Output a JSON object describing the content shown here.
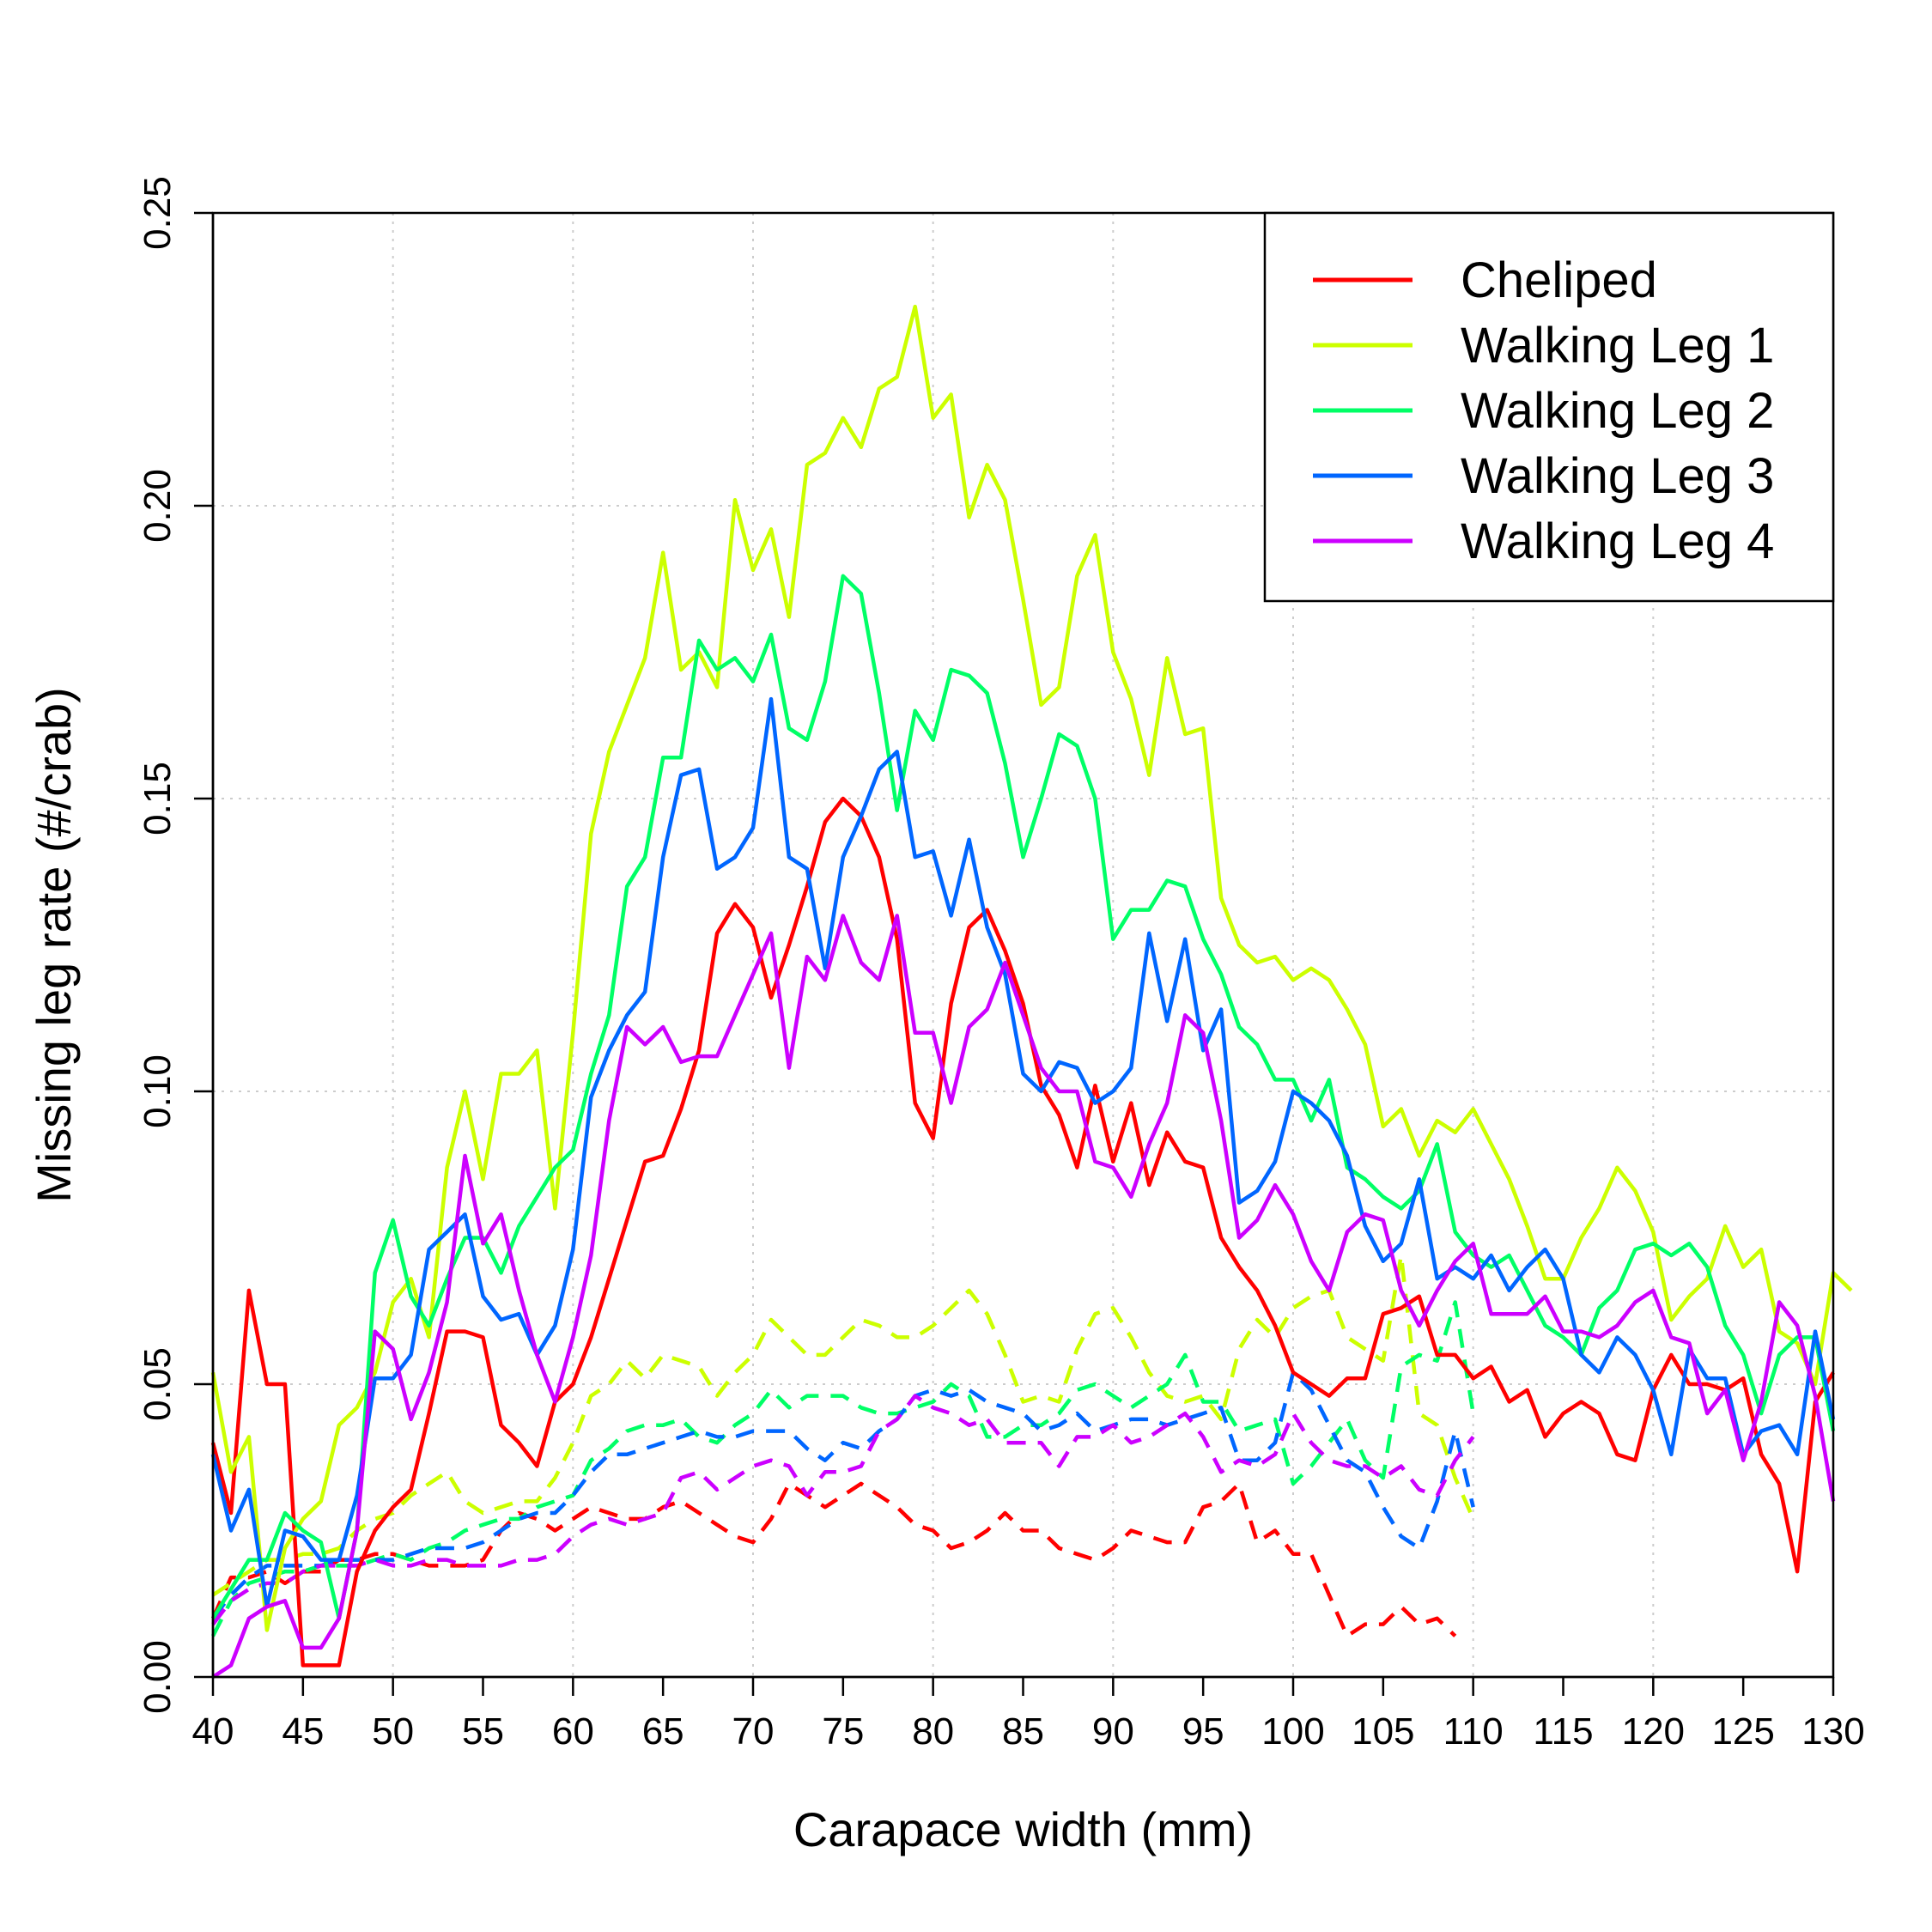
{
  "chart_data": {
    "type": "line",
    "xlabel": "Carapace width (mm)",
    "ylabel": "Missing leg rate (#/crab)",
    "xlim": [
      40,
      130
    ],
    "ylim": [
      0,
      0.25
    ],
    "x_ticks": [
      "40",
      "45",
      "50",
      "55",
      "60",
      "65",
      "70",
      "75",
      "80",
      "85",
      "90",
      "95",
      "100",
      "105",
      "110",
      "115",
      "120",
      "125",
      "130"
    ],
    "y_ticks": [
      "0.00",
      "0.05",
      "0.10",
      "0.15",
      "0.20",
      "0.25"
    ],
    "grid": true,
    "legend_position": "top-right",
    "x_start": 40,
    "series": [
      {
        "name": "Cheliped",
        "color": "#ff0000",
        "solid": [
          0.04,
          0.028,
          0.066,
          0.05,
          0.05,
          0.002,
          0.002,
          0.002,
          0.018,
          0.025,
          0.029,
          0.032,
          0.045,
          0.059,
          0.059,
          0.058,
          0.043,
          0.04,
          0.036,
          0.047,
          0.05,
          0.058,
          0.068,
          0.078,
          0.088,
          0.089,
          0.097,
          0.107,
          0.127,
          0.132,
          0.128,
          0.116,
          0.125,
          0.135,
          0.146,
          0.15,
          0.147,
          0.14,
          0.126,
          0.098,
          0.092,
          0.115,
          0.128,
          0.131,
          0.124,
          0.115,
          0.101,
          0.096,
          0.087,
          0.101,
          0.088,
          0.098,
          0.084,
          0.093,
          0.088,
          0.087,
          0.075,
          0.07,
          0.066,
          0.06,
          0.052,
          0.05,
          0.048,
          0.051,
          0.051,
          0.062,
          0.063,
          0.065,
          0.055,
          0.055,
          0.051,
          0.053,
          0.047,
          0.049,
          0.041,
          0.045,
          0.047,
          0.045,
          0.038,
          0.037,
          0.049,
          0.055,
          0.05,
          0.05,
          0.049,
          0.051,
          0.038,
          0.033,
          0.018,
          0.047,
          0.052
        ],
        "dashed": [
          0.01,
          0.017,
          0.017,
          0.018,
          0.016,
          0.018,
          0.018,
          0.02,
          0.02,
          0.021,
          0.021,
          0.02,
          0.019,
          0.019,
          0.019,
          0.02,
          0.025,
          0.028,
          0.027,
          0.025,
          0.027,
          0.029,
          0.028,
          0.027,
          0.027,
          0.029,
          0.03,
          0.028,
          0.026,
          0.024,
          0.023,
          0.027,
          0.033,
          0.031,
          0.029,
          0.031,
          0.033,
          0.031,
          0.029,
          0.026,
          0.025,
          0.022,
          0.023,
          0.025,
          0.028,
          0.025,
          0.025,
          0.022,
          0.021,
          0.02,
          0.022,
          0.025,
          0.024,
          0.023,
          0.023,
          0.029,
          0.03,
          0.033,
          0.023,
          0.025,
          0.021,
          0.021,
          0.014,
          0.007,
          0.009,
          0.009,
          0.012,
          0.009,
          0.01,
          0.007
        ]
      },
      {
        "name": "Walking Leg 1",
        "color": "#ccff00",
        "solid": [
          0.052,
          0.035,
          0.041,
          0.008,
          0.022,
          0.027,
          0.03,
          0.043,
          0.046,
          0.052,
          0.064,
          0.068,
          0.058,
          0.087,
          0.1,
          0.085,
          0.103,
          0.103,
          0.107,
          0.08,
          0.11,
          0.144,
          0.158,
          0.166,
          0.174,
          0.192,
          0.172,
          0.175,
          0.169,
          0.201,
          0.189,
          0.196,
          0.181,
          0.207,
          0.209,
          0.215,
          0.21,
          0.22,
          0.222,
          0.234,
          0.215,
          0.219,
          0.198,
          0.207,
          0.201,
          0.184,
          0.166,
          0.169,
          0.188,
          0.195,
          0.175,
          0.167,
          0.154,
          0.174,
          0.161,
          0.162,
          0.133,
          0.125,
          0.122,
          0.123,
          0.119,
          0.121,
          0.119,
          0.114,
          0.108,
          0.094,
          0.097,
          0.089,
          0.095,
          0.093,
          0.097,
          0.091,
          0.085,
          0.077,
          0.068,
          0.068,
          0.075,
          0.08,
          0.087,
          0.083,
          0.076,
          0.061,
          0.065,
          0.068,
          0.077,
          0.07,
          0.073,
          0.059,
          0.057,
          0.05,
          0.069,
          0.066
        ],
        "dashed": [
          0.014,
          0.016,
          0.018,
          0.02,
          0.02,
          0.021,
          0.021,
          0.022,
          0.025,
          0.027,
          0.028,
          0.031,
          0.033,
          0.035,
          0.03,
          0.028,
          0.029,
          0.03,
          0.03,
          0.034,
          0.04,
          0.048,
          0.05,
          0.054,
          0.051,
          0.055,
          0.054,
          0.053,
          0.048,
          0.052,
          0.055,
          0.061,
          0.058,
          0.055,
          0.055,
          0.058,
          0.061,
          0.06,
          0.058,
          0.058,
          0.06,
          0.063,
          0.066,
          0.062,
          0.055,
          0.047,
          0.048,
          0.047,
          0.056,
          0.062,
          0.063,
          0.058,
          0.052,
          0.048,
          0.047,
          0.048,
          0.044,
          0.056,
          0.061,
          0.058,
          0.063,
          0.065,
          0.066,
          0.058,
          0.056,
          0.054,
          0.072,
          0.045,
          0.043,
          0.034,
          0.027
        ]
      },
      {
        "name": "Walking Leg 2",
        "color": "#00ff66",
        "solid": [
          0.01,
          0.015,
          0.02,
          0.02,
          0.028,
          0.025,
          0.023,
          0.01,
          0.025,
          0.069,
          0.078,
          0.065,
          0.06,
          0.068,
          0.075,
          0.075,
          0.069,
          0.077,
          0.082,
          0.087,
          0.09,
          0.103,
          0.113,
          0.135,
          0.14,
          0.157,
          0.157,
          0.177,
          0.172,
          0.174,
          0.17,
          0.178,
          0.162,
          0.16,
          0.17,
          0.188,
          0.185,
          0.168,
          0.148,
          0.165,
          0.16,
          0.172,
          0.171,
          0.168,
          0.156,
          0.14,
          0.15,
          0.161,
          0.159,
          0.15,
          0.126,
          0.131,
          0.131,
          0.136,
          0.135,
          0.126,
          0.12,
          0.111,
          0.108,
          0.102,
          0.102,
          0.095,
          0.102,
          0.087,
          0.085,
          0.082,
          0.08,
          0.083,
          0.091,
          0.076,
          0.072,
          0.07,
          0.072,
          0.066,
          0.06,
          0.058,
          0.055,
          0.063,
          0.066,
          0.073,
          0.074,
          0.072,
          0.074,
          0.07,
          0.06,
          0.055,
          0.045,
          0.055,
          0.058,
          0.058,
          0.042
        ],
        "dashed": [
          0.007,
          0.013,
          0.016,
          0.017,
          0.018,
          0.018,
          0.019,
          0.019,
          0.019,
          0.02,
          0.021,
          0.02,
          0.022,
          0.023,
          0.025,
          0.026,
          0.027,
          0.027,
          0.029,
          0.03,
          0.031,
          0.037,
          0.039,
          0.042,
          0.043,
          0.043,
          0.044,
          0.041,
          0.04,
          0.043,
          0.045,
          0.049,
          0.046,
          0.048,
          0.048,
          0.048,
          0.046,
          0.045,
          0.045,
          0.046,
          0.047,
          0.05,
          0.048,
          0.041,
          0.041,
          0.043,
          0.043,
          0.045,
          0.049,
          0.05,
          0.048,
          0.046,
          0.048,
          0.05,
          0.055,
          0.047,
          0.047,
          0.042,
          0.043,
          0.044,
          0.033,
          0.036,
          0.04,
          0.044,
          0.037,
          0.034,
          0.053,
          0.055,
          0.054,
          0.064,
          0.045
        ]
      },
      {
        "name": "Walking Leg 3",
        "color": "#0066ff",
        "solid": [
          0.038,
          0.025,
          0.032,
          0.012,
          0.025,
          0.024,
          0.02,
          0.02,
          0.031,
          0.051,
          0.051,
          0.055,
          0.073,
          0.076,
          0.079,
          0.065,
          0.061,
          0.062,
          0.055,
          0.06,
          0.073,
          0.099,
          0.107,
          0.113,
          0.117,
          0.14,
          0.154,
          0.155,
          0.138,
          0.14,
          0.145,
          0.167,
          0.14,
          0.138,
          0.121,
          0.14,
          0.147,
          0.155,
          0.158,
          0.14,
          0.141,
          0.13,
          0.143,
          0.128,
          0.12,
          0.103,
          0.1,
          0.105,
          0.104,
          0.098,
          0.1,
          0.104,
          0.127,
          0.112,
          0.126,
          0.107,
          0.114,
          0.081,
          0.083,
          0.088,
          0.1,
          0.098,
          0.095,
          0.089,
          0.077,
          0.071,
          0.074,
          0.085,
          0.068,
          0.07,
          0.068,
          0.072,
          0.066,
          0.07,
          0.073,
          0.068,
          0.055,
          0.052,
          0.058,
          0.055,
          0.049,
          0.038,
          0.056,
          0.051,
          0.051,
          0.038,
          0.042,
          0.043,
          0.038,
          0.059,
          0.044
        ],
        "dashed": [
          0.01,
          0.014,
          0.017,
          0.019,
          0.019,
          0.019,
          0.019,
          0.02,
          0.02,
          0.02,
          0.02,
          0.021,
          0.022,
          0.022,
          0.022,
          0.023,
          0.025,
          0.027,
          0.028,
          0.028,
          0.031,
          0.035,
          0.038,
          0.038,
          0.039,
          0.04,
          0.041,
          0.042,
          0.041,
          0.041,
          0.042,
          0.042,
          0.042,
          0.039,
          0.037,
          0.04,
          0.039,
          0.042,
          0.044,
          0.048,
          0.049,
          0.048,
          0.049,
          0.047,
          0.046,
          0.045,
          0.042,
          0.043,
          0.045,
          0.042,
          0.043,
          0.044,
          0.044,
          0.043,
          0.044,
          0.045,
          0.046,
          0.037,
          0.037,
          0.04,
          0.052,
          0.049,
          0.043,
          0.037,
          0.035,
          0.029,
          0.024,
          0.022,
          0.03,
          0.042,
          0.029
        ]
      },
      {
        "name": "Walking Leg 4",
        "color": "#cc00ff",
        "solid": [
          0.0,
          0.002,
          0.01,
          0.012,
          0.013,
          0.005,
          0.005,
          0.01,
          0.025,
          0.059,
          0.056,
          0.044,
          0.052,
          0.064,
          0.089,
          0.074,
          0.079,
          0.066,
          0.055,
          0.047,
          0.058,
          0.072,
          0.095,
          0.111,
          0.108,
          0.111,
          0.105,
          0.106,
          0.106,
          0.113,
          0.12,
          0.127,
          0.104,
          0.123,
          0.119,
          0.13,
          0.122,
          0.119,
          0.13,
          0.11,
          0.11,
          0.098,
          0.111,
          0.114,
          0.122,
          0.113,
          0.104,
          0.1,
          0.1,
          0.088,
          0.087,
          0.082,
          0.091,
          0.098,
          0.113,
          0.11,
          0.095,
          0.075,
          0.078,
          0.084,
          0.079,
          0.071,
          0.066,
          0.076,
          0.079,
          0.078,
          0.066,
          0.06,
          0.066,
          0.071,
          0.074,
          0.062,
          0.062,
          0.062,
          0.065,
          0.059,
          0.059,
          0.058,
          0.06,
          0.064,
          0.066,
          0.058,
          0.057,
          0.045,
          0.049,
          0.037,
          0.047,
          0.064,
          0.06,
          0.048,
          0.03
        ],
        "dashed": [
          0.009,
          0.013,
          0.015,
          0.016,
          0.016,
          0.018,
          0.019,
          0.019,
          0.019,
          0.02,
          0.019,
          0.019,
          0.02,
          0.02,
          0.019,
          0.019,
          0.019,
          0.02,
          0.02,
          0.021,
          0.024,
          0.026,
          0.027,
          0.026,
          0.027,
          0.028,
          0.034,
          0.035,
          0.032,
          0.034,
          0.036,
          0.037,
          0.036,
          0.031,
          0.035,
          0.035,
          0.036,
          0.042,
          0.044,
          0.048,
          0.046,
          0.045,
          0.043,
          0.044,
          0.04,
          0.04,
          0.04,
          0.036,
          0.041,
          0.041,
          0.043,
          0.04,
          0.041,
          0.043,
          0.045,
          0.041,
          0.035,
          0.037,
          0.036,
          0.038,
          0.045,
          0.04,
          0.037,
          0.036,
          0.036,
          0.034,
          0.036,
          0.032,
          0.031,
          0.037,
          0.041
        ]
      }
    ]
  }
}
